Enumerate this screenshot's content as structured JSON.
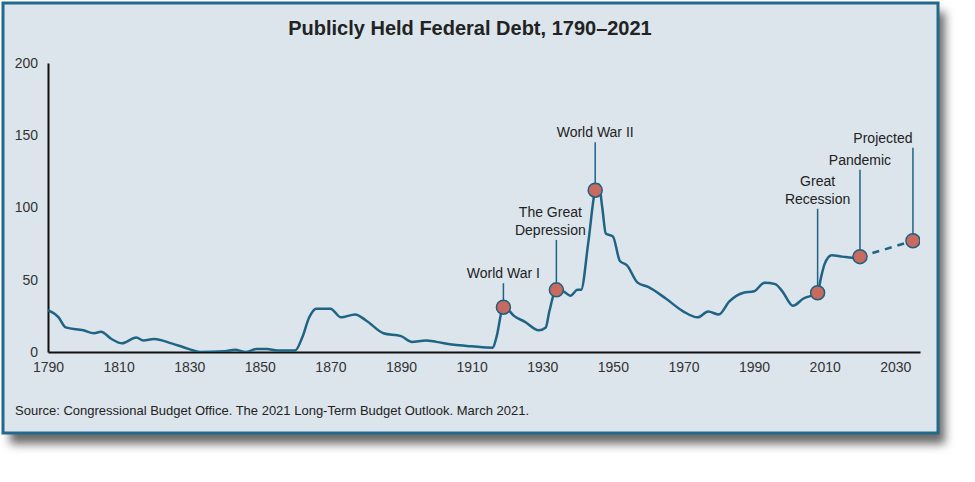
{
  "chart_data": {
    "type": "line",
    "title": "Publicly Held Federal Debt, 1790–2021",
    "source": "Source: Congressional Budget Office. The 2021 Long-Term Budget Outlook. March 2021.",
    "x": [
      1790,
      1793,
      1795,
      1800,
      1803,
      1805,
      1808,
      1811,
      1815,
      1817,
      1820,
      1825,
      1830,
      1833,
      1840,
      1843,
      1846,
      1849,
      1852,
      1855,
      1860,
      1862,
      1864,
      1866,
      1870,
      1873,
      1877,
      1880,
      1885,
      1890,
      1893,
      1897,
      1900,
      1905,
      1910,
      1916,
      1917,
      1919,
      1920,
      1922,
      1925,
      1929,
      1931,
      1932,
      1934,
      1936,
      1938,
      1940,
      1941,
      1943,
      1945,
      1946,
      1947,
      1948,
      1950,
      1952,
      1954,
      1957,
      1960,
      1965,
      1970,
      1974,
      1977,
      1980,
      1983,
      1987,
      1990,
      1993,
      1996,
      1998,
      2001,
      2004,
      2008,
      2009,
      2010,
      2012,
      2015,
      2019,
      2020,
      2027,
      2035
    ],
    "series": [
      {
        "color": "#1f6385",
        "line_style": "solid",
        "values": [
          29,
          24,
          17,
          15,
          13,
          14,
          9,
          6,
          10,
          8,
          9,
          6,
          2,
          0,
          0.5,
          1.5,
          0,
          2,
          2,
          1,
          1,
          10,
          24,
          30,
          30,
          24,
          26,
          22,
          13,
          11,
          7,
          8,
          7,
          5,
          4,
          3,
          10,
          31,
          30,
          25,
          21,
          15,
          17,
          28,
          43,
          42,
          39,
          43,
          43,
          75,
          112,
          116,
          100,
          82,
          80,
          63,
          60,
          48,
          45,
          37,
          28,
          24,
          28,
          26,
          35,
          41,
          42,
          48,
          47,
          42,
          32,
          37,
          41,
          52,
          61,
          67,
          66,
          65,
          66,
          null,
          null
        ]
      },
      {
        "color": "#1f6385",
        "line_style": "dashed",
        "values": [
          null,
          null,
          null,
          null,
          null,
          null,
          null,
          null,
          null,
          null,
          null,
          null,
          null,
          null,
          null,
          null,
          null,
          null,
          null,
          null,
          null,
          null,
          null,
          null,
          null,
          null,
          null,
          null,
          null,
          null,
          null,
          null,
          null,
          null,
          null,
          null,
          null,
          null,
          null,
          null,
          null,
          null,
          null,
          null,
          null,
          null,
          null,
          null,
          null,
          null,
          null,
          null,
          null,
          null,
          null,
          null,
          null,
          null,
          null,
          null,
          null,
          null,
          null,
          null,
          null,
          null,
          null,
          null,
          null,
          null,
          null,
          null,
          null,
          null,
          null,
          null,
          null,
          null,
          66,
          71,
          77
        ]
      }
    ],
    "annotations": [
      {
        "label": [
          "World War I"
        ],
        "x": 1919,
        "y": 31
      },
      {
        "label": [
          "The Great",
          "Depression"
        ],
        "x": 1934,
        "y": 43
      },
      {
        "label": [
          "World War II"
        ],
        "x": 1945,
        "y": 112
      },
      {
        "label": [
          "Great",
          "Recession"
        ],
        "x": 2008,
        "y": 41
      },
      {
        "label": [
          "Pandemic"
        ],
        "x": 2020,
        "y": 66
      },
      {
        "label": [
          "Projected"
        ],
        "x": 2035,
        "y": 77
      }
    ],
    "xlim": [
      1790,
      2037
    ],
    "xticks": [
      1790,
      1810,
      1830,
      1850,
      1870,
      1890,
      1910,
      1930,
      1950,
      1970,
      1990,
      2010,
      2030
    ],
    "ylim": [
      0,
      200
    ],
    "yticks": [
      0,
      50,
      100,
      150,
      200
    ],
    "grid": false,
    "marker": "circle"
  }
}
